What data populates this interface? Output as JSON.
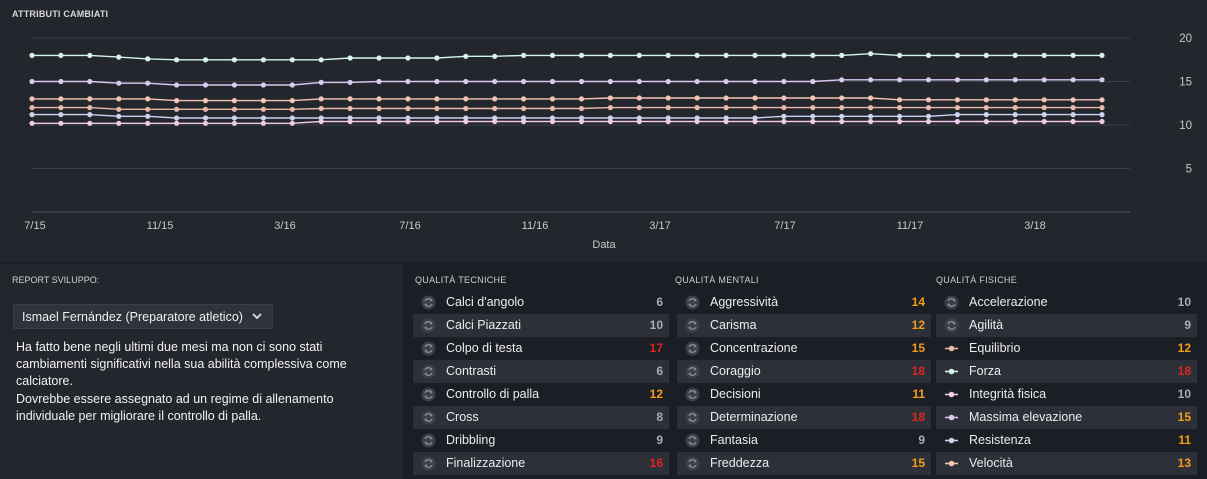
{
  "chart": {
    "title": "ATTRIBUTI CAMBIATI",
    "xlabel": "Data"
  },
  "chart_data": {
    "type": "line",
    "title": "ATTRIBUTI CAMBIATI",
    "xlabel": "Data",
    "ylabel": "",
    "ylim": [
      0,
      20
    ],
    "y_ticks": [
      "20",
      "15",
      "10",
      "5"
    ],
    "x_ticks": [
      "7/15",
      "11/15",
      "3/16",
      "7/16",
      "11/16",
      "3/17",
      "7/17",
      "11/17",
      "3/18"
    ],
    "grid": true,
    "series": [
      {
        "color": "#d6f5e8",
        "values": [
          18,
          18,
          18,
          17.8,
          17.6,
          17.5,
          17.5,
          17.5,
          17.5,
          17.5,
          17.5,
          17.7,
          17.7,
          17.7,
          17.7,
          17.9,
          17.9,
          18,
          18,
          18,
          18,
          18,
          18,
          18,
          18,
          18,
          18,
          18,
          18,
          18.2,
          18,
          18,
          18,
          18,
          18,
          18,
          18,
          18
        ]
      },
      {
        "color": "#d9c9f0",
        "values": [
          15,
          15,
          15,
          14.8,
          14.8,
          14.6,
          14.6,
          14.6,
          14.6,
          14.6,
          14.9,
          14.9,
          15,
          15,
          15,
          15,
          15,
          15,
          15,
          15,
          15,
          15,
          15,
          15,
          15,
          15,
          15,
          15,
          15.2,
          15.2,
          15.2,
          15.2,
          15.2,
          15.2,
          15.2,
          15.2,
          15.2,
          15.2
        ]
      },
      {
        "color": "#f4c3b5",
        "values": [
          13,
          13,
          13,
          13,
          13,
          12.8,
          12.8,
          12.8,
          12.8,
          12.8,
          13,
          13,
          13,
          13,
          13,
          13,
          13,
          13,
          13,
          13,
          13.1,
          13.1,
          13.1,
          13.1,
          13.1,
          13.1,
          13.1,
          13.1,
          13.1,
          13.1,
          12.9,
          12.9,
          12.9,
          12.9,
          12.9,
          12.9,
          12.9,
          12.9
        ]
      },
      {
        "color": "#e8b8a8",
        "values": [
          12,
          12,
          12,
          11.8,
          11.8,
          11.8,
          11.8,
          11.8,
          11.8,
          11.8,
          11.9,
          11.9,
          11.9,
          11.9,
          11.9,
          11.9,
          11.9,
          11.9,
          11.9,
          11.9,
          12,
          12,
          12,
          12,
          12,
          12,
          12,
          12,
          12,
          12,
          12,
          12,
          12,
          12,
          12,
          12,
          12,
          12
        ]
      },
      {
        "color": "#c9d4ee",
        "values": [
          11.2,
          11.2,
          11.2,
          11,
          11,
          10.8,
          10.8,
          10.8,
          10.8,
          10.8,
          10.8,
          10.8,
          10.8,
          10.8,
          10.8,
          10.8,
          10.8,
          10.8,
          10.8,
          10.8,
          10.8,
          10.8,
          10.8,
          10.8,
          10.8,
          10.8,
          11,
          11,
          11,
          11,
          11,
          11,
          11.2,
          11.2,
          11.2,
          11.2,
          11.2,
          11.2
        ]
      },
      {
        "color": "#f0c8e8",
        "values": [
          10.2,
          10.2,
          10.2,
          10.2,
          10.2,
          10.2,
          10.2,
          10.2,
          10.2,
          10.2,
          10.4,
          10.4,
          10.4,
          10.4,
          10.4,
          10.4,
          10.4,
          10.4,
          10.4,
          10.4,
          10.4,
          10.4,
          10.4,
          10.4,
          10.4,
          10.4,
          10.4,
          10.4,
          10.4,
          10.4,
          10.4,
          10.4,
          10.4,
          10.4,
          10.4,
          10.4,
          10.4,
          10.4
        ]
      }
    ]
  },
  "report": {
    "title": "REPORT SVILUPPO:",
    "coach": "Ismael Fernández (Preparatore atletico)",
    "paragraph1": "Ha fatto bene negli ultimi due mesi ma non ci sono stati cambiamenti significativi nella sua abilità complessiva come calciatore.",
    "paragraph2": "Dovrebbe essere assegnato ad un regime di allenamento individuale per migliorare il controllo di palla."
  },
  "columns": [
    {
      "title": "QUALITÀ TECNICHE",
      "rows": [
        {
          "name": "Calci d'angolo",
          "value": "6",
          "level": "grey",
          "icon": "swap-arrows-icon"
        },
        {
          "name": "Calci Piazzati",
          "value": "10",
          "level": "grey",
          "icon": "swap-arrows-icon"
        },
        {
          "name": "Colpo di testa",
          "value": "17",
          "level": "red",
          "icon": "swap-arrows-icon"
        },
        {
          "name": "Contrasti",
          "value": "6",
          "level": "grey",
          "icon": "swap-arrows-icon"
        },
        {
          "name": "Controllo di palla",
          "value": "12",
          "level": "orange",
          "icon": "swap-arrows-icon"
        },
        {
          "name": "Cross",
          "value": "8",
          "level": "grey",
          "icon": "swap-arrows-icon"
        },
        {
          "name": "Dribbling",
          "value": "9",
          "level": "grey",
          "icon": "swap-arrows-icon"
        },
        {
          "name": "Finalizzazione",
          "value": "16",
          "level": "red",
          "icon": "swap-arrows-icon"
        }
      ]
    },
    {
      "title": "QUALITÀ MENTALI",
      "rows": [
        {
          "name": "Aggressività",
          "value": "14",
          "level": "orange",
          "icon": "swap-arrows-icon"
        },
        {
          "name": "Carisma",
          "value": "12",
          "level": "orange",
          "icon": "swap-arrows-icon"
        },
        {
          "name": "Concentrazione",
          "value": "15",
          "level": "orange",
          "icon": "swap-arrows-icon"
        },
        {
          "name": "Coraggio",
          "value": "18",
          "level": "red",
          "icon": "swap-arrows-icon"
        },
        {
          "name": "Decisioni",
          "value": "11",
          "level": "orange",
          "icon": "swap-arrows-icon"
        },
        {
          "name": "Determinazione",
          "value": "18",
          "level": "red",
          "icon": "swap-arrows-icon"
        },
        {
          "name": "Fantasia",
          "value": "9",
          "level": "grey",
          "icon": "swap-arrows-icon"
        },
        {
          "name": "Freddezza",
          "value": "15",
          "level": "orange",
          "icon": "swap-arrows-icon"
        }
      ]
    },
    {
      "title": "QUALITÀ FISICHE",
      "rows": [
        {
          "name": "Accelerazione",
          "value": "10",
          "level": "grey",
          "icon": "swap-arrows-icon"
        },
        {
          "name": "Agilità",
          "value": "9",
          "level": "grey",
          "icon": "swap-arrows-icon"
        },
        {
          "name": "Equilibrio",
          "value": "12",
          "level": "orange",
          "icon": "legend-line-icon",
          "color": "#e8b8a8"
        },
        {
          "name": "Forza",
          "value": "18",
          "level": "red",
          "icon": "legend-line-icon",
          "color": "#d6f5e8"
        },
        {
          "name": "Integrità fisica",
          "value": "10",
          "level": "grey",
          "icon": "legend-line-icon",
          "color": "#f0c8e8"
        },
        {
          "name": "Massima elevazione",
          "value": "15",
          "level": "orange",
          "icon": "legend-line-icon",
          "color": "#d9c9f0"
        },
        {
          "name": "Resistenza",
          "value": "11",
          "level": "orange",
          "icon": "legend-line-icon",
          "color": "#c9d4ee"
        },
        {
          "name": "Velocità",
          "value": "13",
          "level": "orange",
          "icon": "legend-line-icon",
          "color": "#f4c3b5"
        }
      ]
    }
  ],
  "colors": {
    "grey": "#a9acb2",
    "orange": "#f39c1a",
    "red": "#e0251d"
  }
}
